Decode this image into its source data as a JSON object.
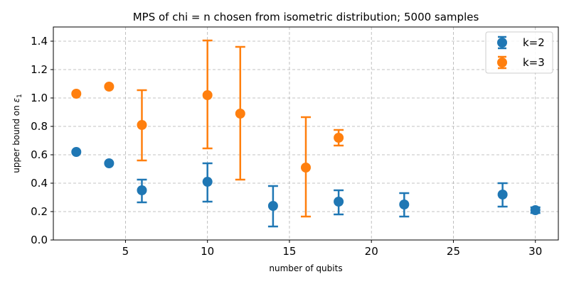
{
  "chart_data": {
    "type": "scatter",
    "title": "MPS of chi = n chosen from isometric distribution; 5000 samples",
    "xlabel": "number of qubits",
    "ylabel_prefix": "upper bound on ",
    "ylabel_symbol": "ε",
    "ylabel_subscript": "1",
    "xlim": [
      0.6,
      31.4
    ],
    "ylim": [
      0.0,
      1.5
    ],
    "xticks": [
      5,
      10,
      15,
      20,
      25,
      30
    ],
    "xtick_labels": [
      "5",
      "10",
      "15",
      "20",
      "25",
      "30"
    ],
    "yticks": [
      0.0,
      0.2,
      0.4,
      0.6,
      0.8,
      1.0,
      1.2,
      1.4
    ],
    "ytick_labels": [
      "0.0",
      "0.2",
      "0.4",
      "0.6",
      "0.8",
      "1.0",
      "1.2",
      "1.4"
    ],
    "grid": true,
    "legend_position": "top-right",
    "series": [
      {
        "name": "k=2",
        "color": "#1f77b4",
        "x": [
          2,
          4,
          6,
          10,
          14,
          18,
          22,
          28,
          30
        ],
        "y": [
          0.62,
          0.54,
          0.35,
          0.41,
          0.24,
          0.27,
          0.25,
          0.32,
          0.21
        ],
        "err_low": [
          0.62,
          0.54,
          0.265,
          0.27,
          0.095,
          0.18,
          0.165,
          0.235,
          0.19
        ],
        "err_high": [
          0.62,
          0.54,
          0.425,
          0.54,
          0.38,
          0.35,
          0.33,
          0.4,
          0.23
        ]
      },
      {
        "name": "k=3",
        "color": "#ff7f0e",
        "x": [
          2,
          4,
          6,
          10,
          12,
          16,
          18
        ],
        "y": [
          1.03,
          1.08,
          0.81,
          1.02,
          0.89,
          0.51,
          0.72
        ],
        "err_low": [
          1.03,
          1.08,
          0.56,
          0.645,
          0.425,
          0.165,
          0.665
        ],
        "err_high": [
          1.03,
          1.08,
          1.055,
          1.405,
          1.36,
          0.865,
          0.775
        ]
      }
    ]
  }
}
